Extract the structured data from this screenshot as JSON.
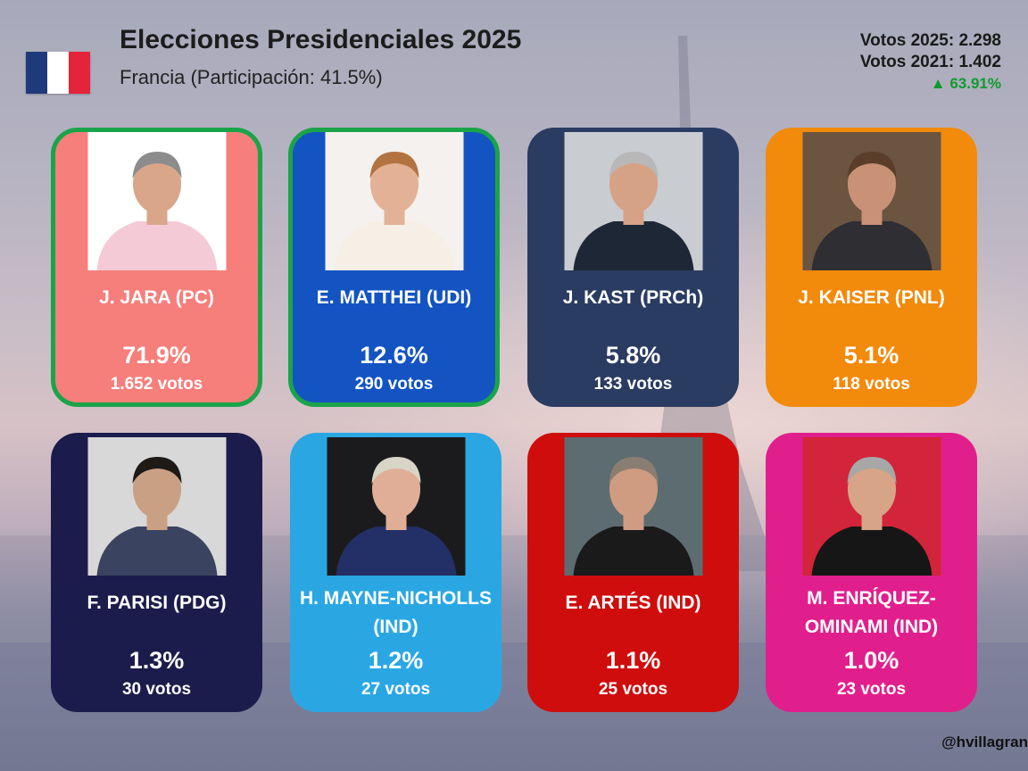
{
  "header": {
    "title": "Elecciones Presidenciales 2025",
    "subtitle": "Francia (Participación: 41.5%)"
  },
  "flag": {
    "colors": [
      "#1f3a7a",
      "#ffffff",
      "#e4243b"
    ]
  },
  "stats": {
    "votes_2025": "Votos 2025: 2.298",
    "votes_2021": "Votos 2021: 1.402",
    "change": "▲ 63.91%"
  },
  "candidates": [
    {
      "name": "J. JARA (PC)",
      "percent": "71.9%",
      "votes": "1.652 votos",
      "color": "#f67f7b",
      "winner": true,
      "photo_bg": "#ffffff",
      "suit": "#f3cad6",
      "skin": "#d9a68a",
      "hair": "#8c8c8c"
    },
    {
      "name": "E. MATTHEI (UDI)",
      "percent": "12.6%",
      "votes": "290 votos",
      "color": "#1354c2",
      "winner": true,
      "photo_bg": "#f4f1ee",
      "suit": "#f5efe6",
      "skin": "#e3b296",
      "hair": "#b37340"
    },
    {
      "name": "J. KAST (PRCh)",
      "percent": "5.8%",
      "votes": "133 votos",
      "color": "#2b3c63",
      "winner": false,
      "photo_bg": "#c9ccd1",
      "suit": "#1d2736",
      "skin": "#d6a286",
      "hair": "#b8b8b8"
    },
    {
      "name": "J. KAISER (PNL)",
      "percent": "5.1%",
      "votes": "118 votos",
      "color": "#f28a0c",
      "winner": false,
      "photo_bg": "#6b5440",
      "suit": "#2e2e33",
      "skin": "#c99176",
      "hair": "#5a3e2a"
    },
    {
      "name": "F. PARISI (PDG)",
      "percent": "1.3%",
      "votes": "30 votos",
      "color": "#1c1c4c",
      "winner": false,
      "photo_bg": "#d8d8d8",
      "suit": "#3a4460",
      "skin": "#caa084",
      "hair": "#1d1a18"
    },
    {
      "name": "H. MAYNE-NICHOLLS (IND)",
      "percent": "1.2%",
      "votes": "27 votos",
      "color": "#2aa7e3",
      "winner": false,
      "photo_bg": "#1b1b1d",
      "suit": "#223067",
      "skin": "#e0ae96",
      "hair": "#d8d4c6"
    },
    {
      "name": "E. ARTÉS (IND)",
      "percent": "1.1%",
      "votes": "25 votos",
      "color": "#cf0d0d",
      "winner": false,
      "photo_bg": "#5c6c70",
      "suit": "#1a1a1a",
      "skin": "#cf9c82",
      "hair": "#8a7e72"
    },
    {
      "name": "M. ENRÍQUEZ-OMINAMI (IND)",
      "percent": "1.0%",
      "votes": "23 votos",
      "color": "#e11f8c",
      "winner": false,
      "photo_bg": "#d2243a",
      "suit": "#161616",
      "skin": "#d7a487",
      "hair": "#a7a7a7"
    }
  ],
  "footer": {
    "handle": "@hvillagran"
  }
}
